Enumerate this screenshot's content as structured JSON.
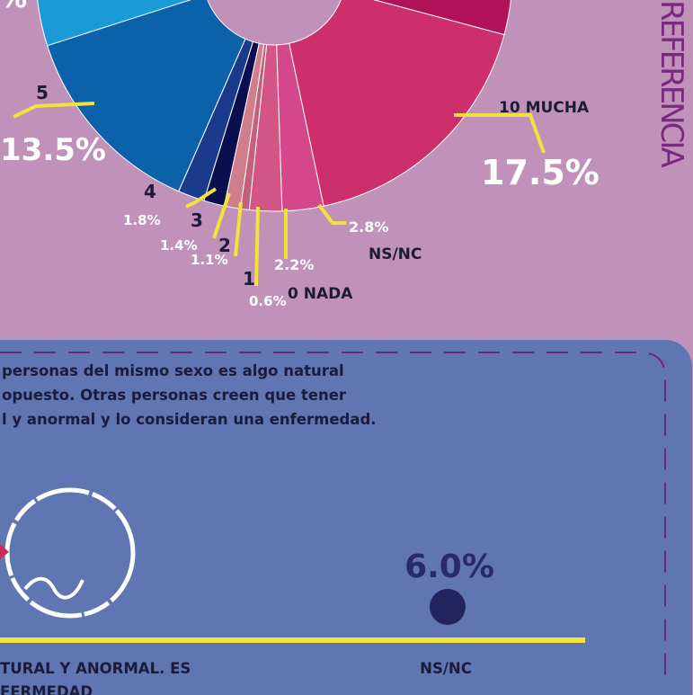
{
  "chart_data": {
    "type": "pie",
    "categories": [
      "10 MUCHA",
      "NS/NC",
      "0 NADA",
      "1",
      "2",
      "3",
      "4",
      "5"
    ],
    "values": [
      17.5,
      2.8,
      2.2,
      0.6,
      1.1,
      1.4,
      1.8,
      13.5
    ],
    "value_labels": [
      "17.5%",
      "2.8%",
      "2.2%",
      "0.6%",
      "1.1%",
      "1.4%",
      "1.8%",
      "13.5%"
    ],
    "colors": [
      "#cc2f6c",
      "#d4478a",
      "#d35585",
      "#c5607c",
      "#d17e8c",
      "#0b0f4f",
      "#1a3b8c",
      "#0b62aa"
    ]
  },
  "reference_title": "REFERENCIA",
  "clipped_label": "%",
  "panel": {
    "lines": [
      "personas del mismo sexo es algo natural",
      "opuesto. Otras personas creen que tener",
      "l y anormal y lo consideran una enfermedad."
    ],
    "option_value": "6.0%",
    "option_labels": [
      "TURAL Y ANORMAL. ES",
      "FERMEDAD",
      "NS/NC"
    ]
  }
}
